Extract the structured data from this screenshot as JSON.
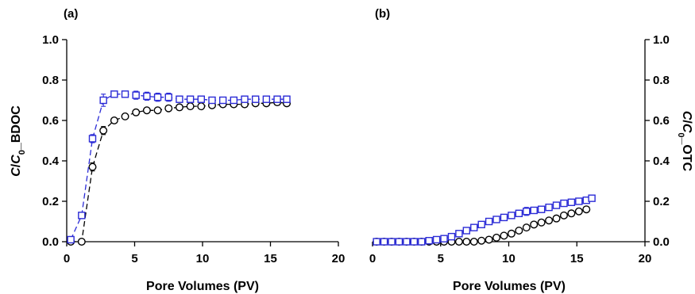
{
  "chart_data": [
    {
      "type": "scatter",
      "panel_label": "(a)",
      "xlabel": "Pore Volumes (PV)",
      "ylabel_parts": [
        "C",
        "/",
        "C",
        "0",
        "_BDOC"
      ],
      "xlim": [
        0,
        20
      ],
      "ylim": [
        0,
        1.0
      ],
      "xticks": [
        "0",
        "5",
        "10",
        "15",
        "20"
      ],
      "yticks": [
        "0.0",
        "0.2",
        "0.4",
        "0.6",
        "0.8",
        "1.0"
      ],
      "yaxis_side": "left",
      "grid": false,
      "series": [
        {
          "marker": "circle",
          "color": "#000000",
          "x": [
            0.3,
            1.1,
            1.9,
            2.7,
            3.5,
            4.3,
            5.1,
            5.9,
            6.7,
            7.5,
            8.3,
            9.1,
            9.9,
            10.7,
            11.5,
            12.3,
            13.1,
            13.9,
            14.7,
            15.5,
            16.2
          ],
          "y": [
            0.0,
            0.0,
            0.37,
            0.55,
            0.6,
            0.62,
            0.64,
            0.65,
            0.65,
            0.66,
            0.665,
            0.67,
            0.67,
            0.675,
            0.68,
            0.68,
            0.68,
            0.685,
            0.685,
            0.69,
            0.685
          ],
          "err": [
            0.01,
            0.005,
            0.02,
            0.02,
            0.01,
            0.01,
            0.01,
            0.01,
            0.01,
            0.01,
            0.01,
            0.01,
            0.01,
            0.01,
            0.01,
            0.01,
            0.01,
            0.01,
            0.01,
            0.01,
            0.01
          ]
        },
        {
          "marker": "square",
          "color": "#2b2bd6",
          "x": [
            0.3,
            1.1,
            1.9,
            2.7,
            3.5,
            4.3,
            5.1,
            5.9,
            6.7,
            7.5,
            8.3,
            9.1,
            9.9,
            10.7,
            11.5,
            12.3,
            13.1,
            13.9,
            14.7,
            15.5,
            16.2
          ],
          "y": [
            0.01,
            0.13,
            0.51,
            0.7,
            0.73,
            0.73,
            0.725,
            0.72,
            0.715,
            0.715,
            0.705,
            0.705,
            0.705,
            0.7,
            0.7,
            0.7,
            0.705,
            0.705,
            0.705,
            0.705,
            0.705
          ],
          "err": [
            0.01,
            0.01,
            0.02,
            0.03,
            0.015,
            0.01,
            0.02,
            0.02,
            0.02,
            0.02,
            0.015,
            0.015,
            0.015,
            0.01,
            0.01,
            0.01,
            0.01,
            0.01,
            0.01,
            0.01,
            0.015
          ]
        }
      ]
    },
    {
      "type": "scatter",
      "panel_label": "(b)",
      "xlabel": "Pore Volumes (PV)",
      "ylabel_parts": [
        "C",
        "/",
        "C",
        "0",
        "_OTC"
      ],
      "xlim": [
        0,
        20
      ],
      "ylim": [
        0,
        1.0
      ],
      "xticks": [
        "0",
        "5",
        "10",
        "15",
        "20"
      ],
      "yticks": [
        "0.0",
        "0.2",
        "0.4",
        "0.6",
        "0.8",
        "1.0"
      ],
      "yaxis_side": "right",
      "grid": false,
      "series": [
        {
          "marker": "circle",
          "color": "#000000",
          "x": [
            0.3,
            0.85,
            1.4,
            1.95,
            2.5,
            3.05,
            3.6,
            4.15,
            4.7,
            5.25,
            5.8,
            6.35,
            6.9,
            7.45,
            8.0,
            8.55,
            9.1,
            9.65,
            10.2,
            10.75,
            11.3,
            11.85,
            12.4,
            12.95,
            13.5,
            14.05,
            14.6,
            15.15,
            15.7
          ],
          "y": [
            0.0,
            0.0,
            0.0,
            0.0,
            0.0,
            0.0,
            0.0,
            0.0,
            0.0,
            0.0,
            0.0,
            0.0,
            0.0,
            0.0,
            0.005,
            0.01,
            0.02,
            0.03,
            0.04,
            0.055,
            0.07,
            0.085,
            0.095,
            0.105,
            0.115,
            0.13,
            0.14,
            0.15,
            0.16
          ],
          "err": [
            0.004,
            0.004,
            0.004,
            0.004,
            0.004,
            0.004,
            0.004,
            0.004,
            0.004,
            0.004,
            0.004,
            0.004,
            0.004,
            0.004,
            0.004,
            0.004,
            0.004,
            0.004,
            0.004,
            0.005,
            0.005,
            0.006,
            0.006,
            0.006,
            0.008,
            0.008,
            0.008,
            0.01,
            0.01
          ]
        },
        {
          "marker": "square",
          "color": "#2b2bd6",
          "x": [
            0.3,
            0.85,
            1.4,
            1.95,
            2.5,
            3.05,
            3.6,
            4.15,
            4.7,
            5.25,
            5.8,
            6.35,
            6.9,
            7.45,
            8.0,
            8.55,
            9.1,
            9.65,
            10.2,
            10.75,
            11.3,
            11.85,
            12.4,
            12.95,
            13.5,
            14.05,
            14.6,
            15.15,
            15.7,
            16.1
          ],
          "y": [
            0.0,
            0.0,
            0.0,
            0.0,
            0.0,
            0.0,
            0.0,
            0.005,
            0.01,
            0.015,
            0.025,
            0.04,
            0.055,
            0.07,
            0.085,
            0.1,
            0.11,
            0.12,
            0.13,
            0.14,
            0.15,
            0.155,
            0.16,
            0.17,
            0.18,
            0.19,
            0.195,
            0.2,
            0.205,
            0.215
          ],
          "err": [
            0.004,
            0.004,
            0.004,
            0.004,
            0.004,
            0.004,
            0.004,
            0.004,
            0.004,
            0.005,
            0.005,
            0.006,
            0.006,
            0.008,
            0.008,
            0.01,
            0.01,
            0.012,
            0.012,
            0.015,
            0.02,
            0.015,
            0.015,
            0.015,
            0.015,
            0.012,
            0.01,
            0.01,
            0.01,
            0.01
          ]
        }
      ]
    }
  ]
}
